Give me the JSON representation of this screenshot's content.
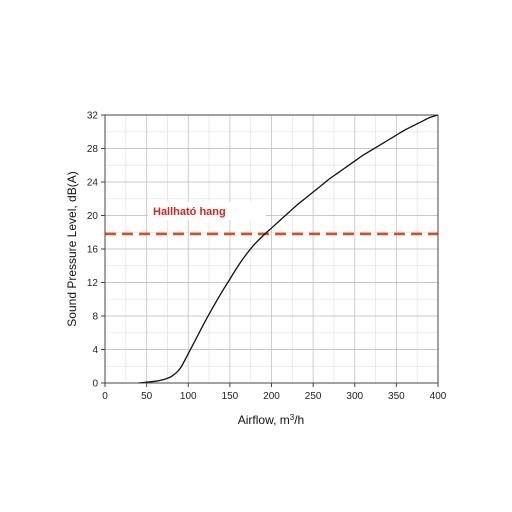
{
  "chart_data": {
    "type": "line",
    "title": "",
    "xlabel_main": "Airflow, m",
    "xlabel_sup": "3",
    "xlabel_tail": "/h",
    "ylabel": "Sound Pressure Level, dB(A)",
    "xlim": [
      0,
      400
    ],
    "ylim": [
      0,
      32
    ],
    "x_ticks": [
      0,
      50,
      100,
      150,
      200,
      250,
      300,
      350,
      400
    ],
    "y_ticks": [
      0,
      4,
      8,
      12,
      16,
      20,
      24,
      28,
      32
    ],
    "grid": true,
    "grid_minor": true,
    "series": [
      {
        "color": "#111111",
        "x": [
          40,
          50,
          60,
          70,
          80,
          90,
          100,
          110,
          120,
          130,
          140,
          150,
          160,
          170,
          180,
          190,
          200,
          210,
          220,
          230,
          240,
          250,
          260,
          270,
          280,
          290,
          300,
          310,
          320,
          330,
          340,
          350,
          360,
          370,
          380,
          390,
          400
        ],
        "y": [
          0,
          0.1,
          0.2,
          0.4,
          0.8,
          1.7,
          3.5,
          5.4,
          7.3,
          9.1,
          10.8,
          12.4,
          14.0,
          15.4,
          16.6,
          17.6,
          18.5,
          19.4,
          20.3,
          21.2,
          22.0,
          22.8,
          23.6,
          24.4,
          25.1,
          25.8,
          26.5,
          27.2,
          27.8,
          28.4,
          29.0,
          29.6,
          30.2,
          30.7,
          31.2,
          31.7,
          32.0
        ]
      }
    ],
    "threshold": {
      "value": 17.8,
      "label": "Hallható hang",
      "color": "#d8501e",
      "label_color": "#d8231e"
    }
  }
}
